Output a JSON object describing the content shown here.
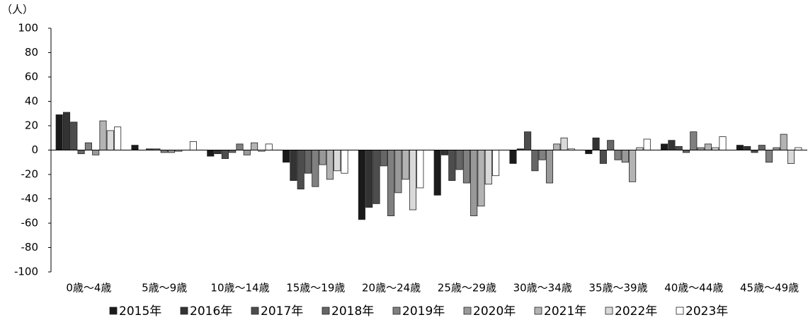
{
  "chart_data": {
    "type": "bar",
    "y_unit_label": "（人）",
    "categories": [
      "0歳～4歳",
      "5歳～9歳",
      "10歳～14歳",
      "15歳～19歳",
      "20歳～24歳",
      "25歳～29歳",
      "30歳～34歳",
      "35歳～39歳",
      "40歳～44歳",
      "45歳～49歳"
    ],
    "series": [
      {
        "name": "2015年",
        "color": "#1a1a1a",
        "values": [
          29,
          4,
          -5,
          -10,
          -57,
          -37,
          -11,
          -3,
          5,
          4
        ]
      },
      {
        "name": "2016年",
        "color": "#333333",
        "values": [
          31,
          0,
          -3,
          -25,
          -47,
          -4,
          1,
          10,
          8,
          3
        ]
      },
      {
        "name": "2017年",
        "color": "#4d4d4d",
        "values": [
          23,
          1,
          -7,
          -32,
          -44,
          -25,
          15,
          -11,
          3,
          -2
        ]
      },
      {
        "name": "2018年",
        "color": "#666666",
        "values": [
          -3,
          1,
          -2,
          -19,
          -13,
          -16,
          -17,
          8,
          -2,
          4
        ]
      },
      {
        "name": "2019年",
        "color": "#808080",
        "values": [
          6,
          -2,
          5,
          -30,
          -54,
          -27,
          -8,
          -8,
          15,
          -10
        ]
      },
      {
        "name": "2020年",
        "color": "#999999",
        "values": [
          -4,
          -2,
          -4,
          -12,
          -35,
          -54,
          -27,
          -10,
          2,
          2
        ]
      },
      {
        "name": "2021年",
        "color": "#b3b3b3",
        "values": [
          24,
          -1,
          6,
          -24,
          -24,
          -46,
          5,
          -26,
          5,
          13
        ]
      },
      {
        "name": "2022年",
        "color": "#d9d9d9",
        "values": [
          16,
          0,
          -1,
          -17,
          -49,
          -28,
          10,
          2,
          2,
          -11
        ]
      },
      {
        "name": "2023年",
        "color": "#ffffff",
        "values": [
          19,
          7,
          5,
          -19,
          -31,
          -21,
          1,
          9,
          11,
          2
        ]
      }
    ],
    "ylim": [
      -100,
      100
    ],
    "yticks": [
      -100,
      -80,
      -60,
      -40,
      -20,
      0,
      20,
      40,
      60,
      80,
      100
    ],
    "grid": false
  }
}
